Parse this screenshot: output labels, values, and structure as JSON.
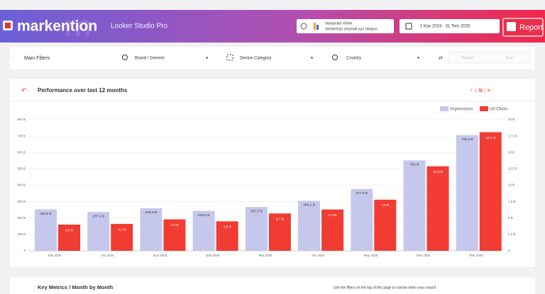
{
  "header": {
    "logo": "markention",
    "product": "Looker Studio Pro",
    "data_source_title": "Varsayılan Veriler",
    "data_source_hint": "Verilerinizi seçmek için tıklayın",
    "date_range": "1 Kas 2024 - 31 Tem 2025",
    "report_button": "Report"
  },
  "filters": {
    "title": "Main Filters",
    "brand": "Brand / Generic",
    "device": "Device Category",
    "country": "Country",
    "period": "Period",
    "year": "Year"
  },
  "chart_data": {
    "type": "bar",
    "title": "Performance over last 12 months",
    "categories": [
      "Kas 2024",
      "Ara 2024",
      "Oca 2025",
      "Şub 2025",
      "Mar 2025",
      "Nis 2025",
      "May 2025",
      "Haz 2025",
      "Tem 2025"
    ],
    "series": [
      {
        "name": "Impressions",
        "color": "#c6c7ec",
        "values": [
          252.8,
          237.1,
          259.6,
          243.3,
          267.3,
          305.2,
          377.9,
          552,
          705.5
        ],
        "value_labels": [
          "252,8 B",
          "237,1 B",
          "259,6 B",
          "243,3 B",
          "267,3 B",
          "305,2 B",
          "377,9 B",
          "552 B",
          "705,5 B"
        ]
      },
      {
        "name": "Url Clicks",
        "color": "#f03c32",
        "axis": "y2",
        "values": [
          4.0,
          4.1,
          4.8,
          4.5,
          5.7,
          6.3,
          7.8,
          12.9,
          18.1
        ],
        "value_labels": [
          "4,0 B",
          "4,1 B",
          "4,8 B",
          "4,5 B",
          "5,7 B",
          "6,3 B",
          "7,8 B",
          "12,9 B",
          "18,1 B"
        ]
      }
    ],
    "ylim": [
      0,
      800
    ],
    "yticks": [
      0,
      {
        "value": 100,
        "label": "100 B"
      },
      {
        "value": 200,
        "label": "200 B"
      },
      {
        "value": 300,
        "label": "300 B"
      },
      {
        "value": 400,
        "label": "400 B"
      },
      {
        "value": 500,
        "label": "500 B"
      },
      {
        "value": 600,
        "label": "600 B"
      },
      {
        "value": 700,
        "label": "700 B"
      },
      {
        "value": 800,
        "label": "800 B"
      }
    ],
    "y2lim": [
      0,
      20
    ],
    "y2ticks": [
      0,
      {
        "value": 2.5,
        "label": "2,5 B"
      },
      {
        "value": 5,
        "label": "5 B"
      },
      {
        "value": 7.5,
        "label": "7,5 B"
      },
      {
        "value": 10,
        "label": "10 B"
      },
      {
        "value": 12.5,
        "label": "12,5 B"
      },
      {
        "value": 15,
        "label": "15 B"
      },
      {
        "value": 17.5,
        "label": "17,5 B"
      },
      {
        "value": 20,
        "label": "20 B"
      }
    ],
    "grid": true,
    "legend": "top-right"
  },
  "next_section": {
    "title": "Key Metrics / Month by Month",
    "hint": "Use the filters on the top of this page to narrow down your search"
  }
}
